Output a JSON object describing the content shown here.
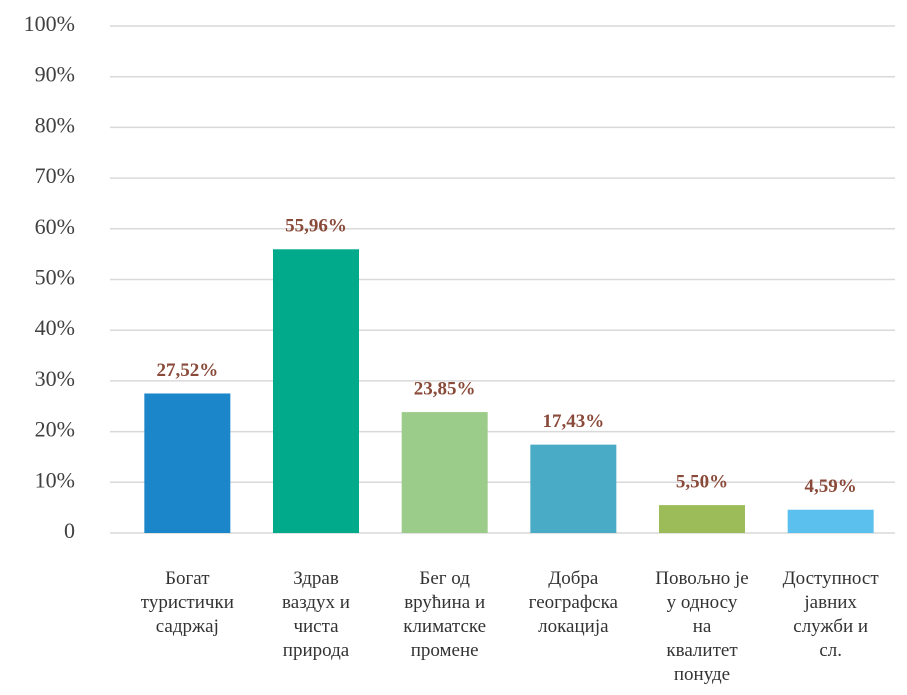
{
  "chart_data": {
    "type": "bar",
    "categories": [
      "Богат туристички садржај",
      "Здрав ваздух и чиста природа",
      "Бег од врућина и климатске промене",
      "Добра географска локација",
      "Повољно је у односу на квалитет понуде",
      "Доступност јавних служби и сл."
    ],
    "values": [
      27.52,
      55.96,
      23.85,
      17.43,
      5.5,
      4.59
    ],
    "value_labels": [
      "27,52%",
      "55,96%",
      "23,85%",
      "17,43%",
      "5,50%",
      "4,59%"
    ],
    "colors": [
      "#1b86c9",
      "#00aa8b",
      "#9ccc8a",
      "#4aabc6",
      "#9cbc59",
      "#5bc0ee"
    ],
    "ylim": [
      0,
      100
    ],
    "yticks": [
      0,
      {
        "value": 10,
        "label": "10%"
      },
      {
        "value": 20,
        "label": "20%"
      },
      {
        "value": 30,
        "label": "30%"
      },
      {
        "value": 40,
        "label": "40%"
      },
      {
        "value": 50,
        "label": "50%"
      },
      {
        "value": 60,
        "label": "60%"
      },
      {
        "value": 70,
        "label": "70%"
      },
      {
        "value": 80,
        "label": "80%"
      },
      {
        "value": 90,
        "label": "90%"
      },
      {
        "value": 100,
        "label": "100%"
      }
    ],
    "grid": true
  }
}
